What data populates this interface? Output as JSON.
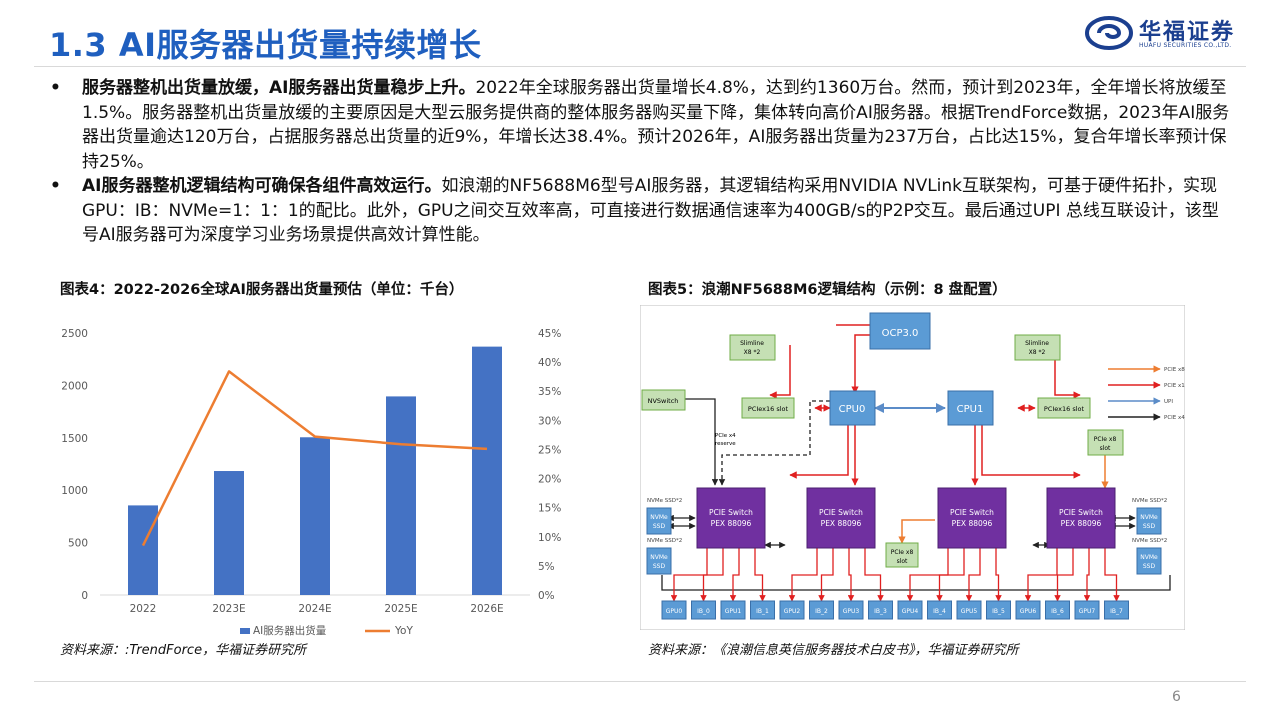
{
  "page": {
    "title": "1.3 AI服务器出货量持续增长",
    "logo_cn": "华福证券",
    "logo_en": "HUAFU SECURITIES CO.,LTD.",
    "page_number": "6",
    "bullet_char": "•"
  },
  "bullets": [
    {
      "bold": "服务器整机出货量放缓，AI服务器出货量稳步上升。",
      "text": "2022年全球服务器出货量增长4.8%，达到约1360万台。然而，预计到2023年，全年增长将放缓至1.5%。服务器整机出货量放缓的主要原因是大型云服务提供商的整体服务器购买量下降，集体转向高价AI服务器。根据TrendForce数据，2023年AI服务器出货量逾达120万台，占据服务器总出货量的近9%，年增长达38.4%。预计2026年，AI服务器出货量为237万台，占比达15%，复合年增长率预计保持25%。"
    },
    {
      "bold": "AI服务器整机逻辑结构可确保各组件高效运行。",
      "text": "如浪潮的NF5688M6型号AI服务器，其逻辑结构采用NVIDIA  NVLink互联架构，可基于硬件拓扑，实现 GPU：IB：NVMe=1：1：1的配比。此外，GPU之间交互效率高，可直接进行数据通信速率为400GB/s的P2P交互。最后通过UPI 总线互联设计，该型号AI服务器可为深度学习业务场景提供高效计算性能。"
    }
  ],
  "figure4": {
    "caption": "图表4：2022-2026全球AI服务器出货量预估（单位：千台）",
    "source": "资料来源：:TrendForce，华福证券研究所"
  },
  "figure5": {
    "caption": "图表5：浪潮NF5688M6逻辑结构（示例：8 盘配置）",
    "source": "资料来源：《浪潮信息英信服务器技术白皮书》，华福证券研究所"
  },
  "chart_data": {
    "type": "bar",
    "categories": [
      "2022",
      "2023E",
      "2024E",
      "2025E",
      "2026E"
    ],
    "series": [
      {
        "name": "AI服务器出货量",
        "type": "bar",
        "axis": "left",
        "values": [
          855,
          1183,
          1505,
          1895,
          2370
        ],
        "color": "#4472c4"
      },
      {
        "name": "YoY",
        "type": "line",
        "axis": "right",
        "values": [
          8.5,
          38.4,
          27.2,
          25.9,
          25.1
        ],
        "color": "#ed7d31"
      }
    ],
    "ylim": [
      0,
      2500
    ],
    "yticks": [
      "0",
      "500",
      "1000",
      "1500",
      "2000",
      "2500"
    ],
    "y2lim": [
      0,
      45
    ],
    "y2ticks": [
      "0%",
      "5%",
      "10%",
      "15%",
      "20%",
      "25%",
      "30%",
      "35%",
      "40%",
      "45%"
    ],
    "grid": false,
    "legend": "bottom"
  },
  "diagram": {
    "ocp": "OCP3.0",
    "slimline": "Slimline",
    "slimline_sub": "X8 *2",
    "cpu0": "CPU0",
    "cpu1": "CPU1",
    "pcie16_slot": "PCIex16 slot",
    "nvswitch": "NVSwitch",
    "pcie_x4_reserve": [
      "PCIe x4",
      "reserve"
    ],
    "pcie_x8_slot": [
      "PCIe x8",
      "slot"
    ],
    "switch": [
      "PCIE Switch",
      "PEX 88096"
    ],
    "nvme_ssd": [
      "NVMe",
      "SSD"
    ],
    "nvme_ssd_2": "NVMe SSD*2",
    "gpus": [
      "GPU0",
      "IB_0",
      "GPU1",
      "IB_1",
      "GPU2",
      "IB_2",
      "GPU3",
      "IB_3",
      "GPU4",
      "IB_4",
      "GPU5",
      "IB_5",
      "GPU6",
      "IB_6",
      "GPU7",
      "IB_7"
    ],
    "legend": [
      {
        "label": "PCIE x8",
        "color": "#ed7d31"
      },
      {
        "label": "PCIE x16",
        "color": "#e02020"
      },
      {
        "label": "UPI",
        "color": "#5b8cc8"
      },
      {
        "label": "PCIE x4",
        "color": "#222222"
      }
    ]
  }
}
